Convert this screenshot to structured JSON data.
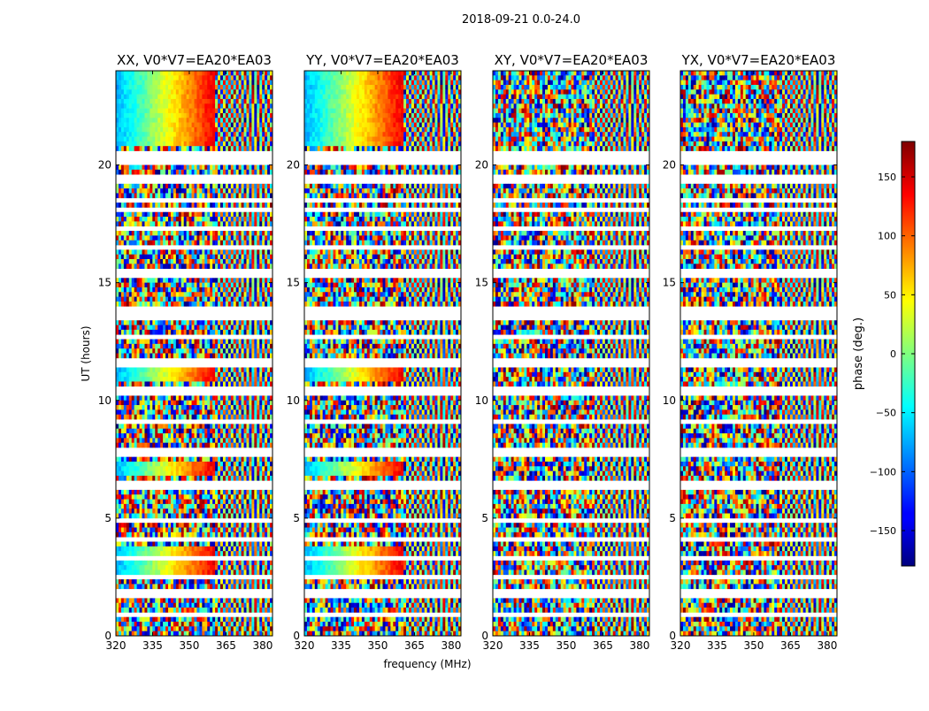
{
  "suptitle": "2018-09-21 0.0-24.0",
  "chart_data": [
    {
      "type": "heatmap",
      "title": "XX, V0*V7=EA20*EA03",
      "xlabel": "",
      "ylabel": "UT (hours)",
      "x_ticks": [
        "320",
        "335",
        "350",
        "365",
        "380"
      ],
      "y_ticks": [
        "0",
        "5",
        "10",
        "15",
        "20"
      ],
      "xlim": [
        320,
        384
      ],
      "ylim": [
        0,
        24
      ]
    },
    {
      "type": "heatmap",
      "title": "YY, V0*V7=EA20*EA03",
      "xlabel": "frequency (MHz)",
      "ylabel": "",
      "x_ticks": [
        "320",
        "335",
        "350",
        "365",
        "380"
      ],
      "y_ticks": [
        "0",
        "5",
        "10",
        "15",
        "20"
      ],
      "xlim": [
        320,
        384
      ],
      "ylim": [
        0,
        24
      ]
    },
    {
      "type": "heatmap",
      "title": "XY, V0*V7=EA20*EA03",
      "xlabel": "",
      "ylabel": "",
      "x_ticks": [
        "320",
        "335",
        "350",
        "365",
        "380"
      ],
      "y_ticks": [
        "0",
        "5",
        "10",
        "15",
        "20"
      ],
      "xlim": [
        320,
        384
      ],
      "ylim": [
        0,
        24
      ]
    },
    {
      "type": "heatmap",
      "title": "YX, V0*V7=EA20*EA03",
      "xlabel": "",
      "ylabel": "",
      "x_ticks": [
        "320",
        "335",
        "350",
        "365",
        "380"
      ],
      "y_ticks": [
        "0",
        "5",
        "10",
        "15",
        "20"
      ],
      "xlim": [
        320,
        384
      ],
      "ylim": [
        0,
        24
      ]
    }
  ],
  "colorbar": {
    "label": "phase (deg.)",
    "ticks": [
      "150",
      "100",
      "50",
      "0",
      "−50",
      "−100",
      "−150"
    ],
    "range": [
      -180,
      180
    ],
    "colormap": "jet"
  },
  "colors": {
    "blank_row": "#ffffff",
    "frame": "#000000"
  }
}
